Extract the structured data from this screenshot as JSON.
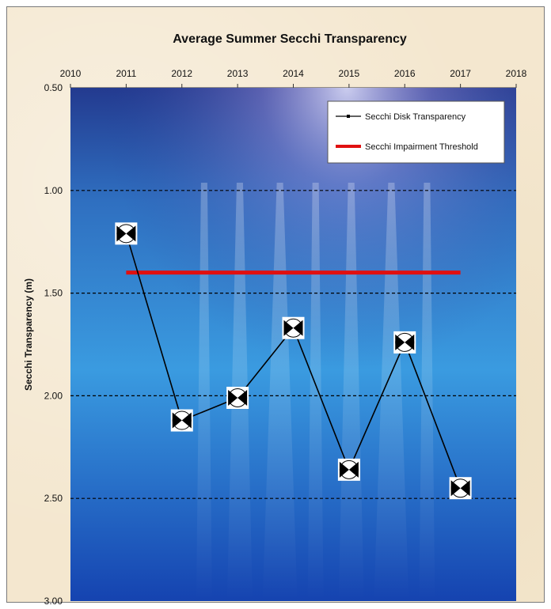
{
  "chart_data": {
    "type": "line",
    "title": "Average Summer Secchi Transparency",
    "ylabel": "Secchi Transparency (m)",
    "xlabel": "",
    "xlim": [
      2010,
      2018
    ],
    "ylim": [
      0.5,
      3.0
    ],
    "y_inverted": true,
    "x_axis_position": "top",
    "x_ticks": [
      "2010",
      "2011",
      "2012",
      "2013",
      "2014",
      "2015",
      "2016",
      "2017",
      "2018"
    ],
    "y_ticks": [
      "0.50",
      "1.00",
      "1.50",
      "2.00",
      "2.50",
      "3.00"
    ],
    "grid": "horizontal dashed",
    "legend_position": "top-right",
    "series": [
      {
        "name": "Secchi Disk Transparency",
        "color": "#000000",
        "x": [
          2011,
          2012,
          2013,
          2014,
          2015,
          2016,
          2017
        ],
        "y": [
          1.21,
          2.12,
          2.01,
          1.67,
          2.36,
          1.74,
          2.45
        ]
      },
      {
        "name": "Secchi Impairment Threshold",
        "color": "#e01010",
        "x": [
          2011,
          2017
        ],
        "y": [
          1.4,
          1.4
        ]
      }
    ]
  },
  "colors": {
    "water_top": "#1c3f9a",
    "water_mid": "#2f8fd6",
    "water_bottom": "#0f3fa8",
    "threshold": "#e01010"
  }
}
